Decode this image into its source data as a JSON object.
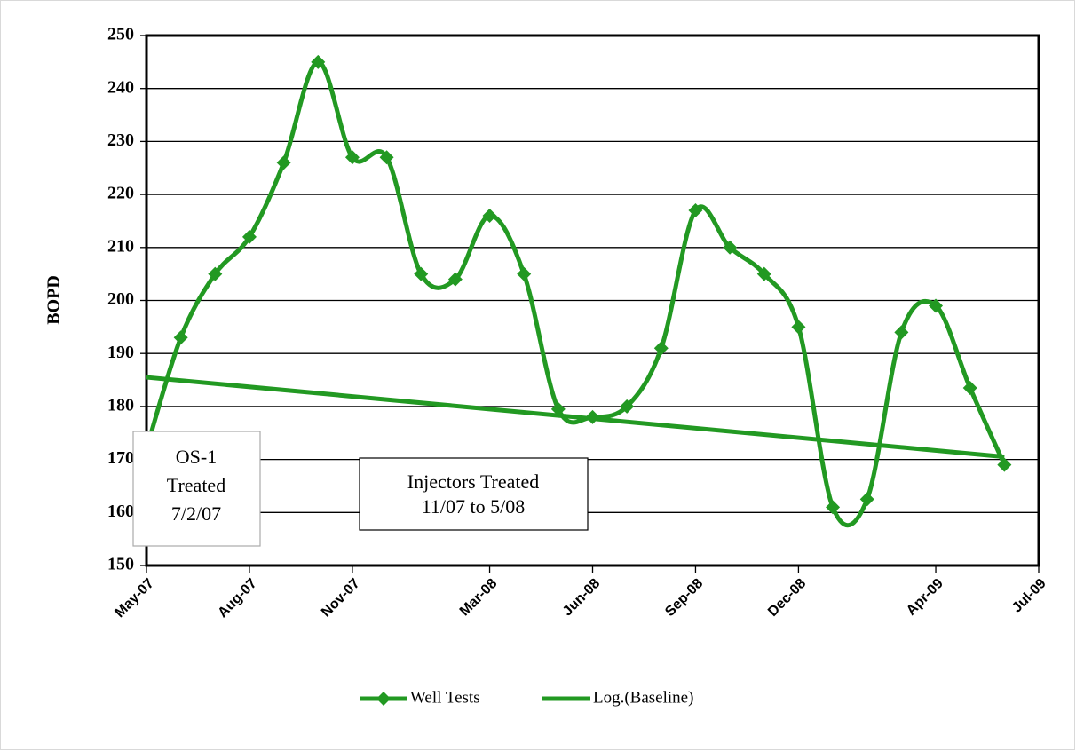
{
  "chart_data": {
    "type": "line",
    "ylabel": "BOPD",
    "ylim": [
      150,
      250
    ],
    "yticks": [
      150,
      160,
      170,
      180,
      190,
      200,
      210,
      220,
      230,
      240,
      250
    ],
    "xlim": [
      "2007-05",
      "2009-07"
    ],
    "xticks": [
      {
        "value": "2007-05",
        "label": "May-07"
      },
      {
        "value": "2007-08",
        "label": "Aug-07"
      },
      {
        "value": "2007-11",
        "label": "Nov-07"
      },
      {
        "value": "2008-03",
        "label": "Mar-08"
      },
      {
        "value": "2008-06",
        "label": "Jun-08"
      },
      {
        "value": "2008-09",
        "label": "Sep-08"
      },
      {
        "value": "2008-12",
        "label": "Dec-08"
      },
      {
        "value": "2009-04",
        "label": "Apr-09"
      },
      {
        "value": "2009-07",
        "label": "Jul-09"
      }
    ],
    "grid": true,
    "legend": "bottom",
    "series": [
      {
        "name": "Well Tests",
        "color": "#229922",
        "marker": "diamond",
        "smooth": true,
        "x": [
          "2007-05",
          "2007-06",
          "2007-07",
          "2007-08",
          "2007-09",
          "2007-10",
          "2007-11",
          "2007-12",
          "2008-01",
          "2008-02",
          "2008-03",
          "2008-04",
          "2008-05",
          "2008-06",
          "2008-07",
          "2008-08",
          "2008-09",
          "2008-10",
          "2008-11",
          "2008-12",
          "2009-01",
          "2009-02",
          "2009-03",
          "2009-04",
          "2009-05",
          "2009-06"
        ],
        "values": [
          172,
          193,
          205,
          212,
          226,
          245,
          227,
          227,
          205,
          204,
          216,
          205,
          179.5,
          178,
          180,
          191,
          217,
          210,
          205,
          195,
          161,
          162.5,
          194,
          199,
          183.5,
          169
        ]
      },
      {
        "name": "Log.(Baseline)",
        "color": "#229922",
        "marker": "none",
        "smooth": false,
        "x": [
          "2007-05",
          "2009-06"
        ],
        "values": [
          185.5,
          170.5
        ]
      }
    ],
    "annotations": [
      {
        "lines": [
          "OS-1",
          "Treated",
          "7/2/07"
        ]
      },
      {
        "lines": [
          "Injectors Treated",
          "11/07 to 5/08"
        ]
      }
    ]
  }
}
